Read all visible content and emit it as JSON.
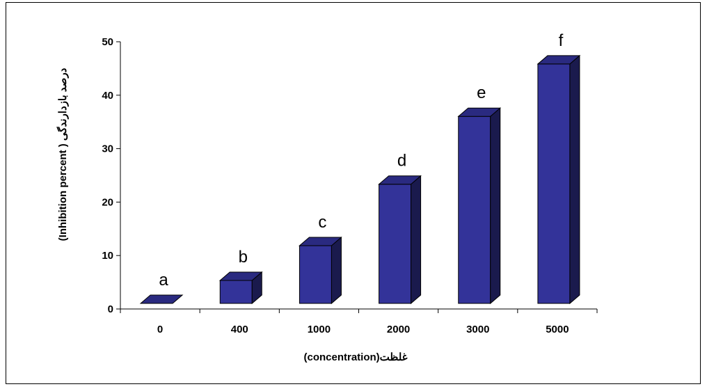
{
  "chart_data": {
    "type": "bar",
    "categories": [
      "0",
      "400",
      "1000",
      "2000",
      "3000",
      "5000"
    ],
    "values": [
      0,
      4.3,
      10.8,
      22.3,
      35.0,
      44.8
    ],
    "data_labels": [
      "a",
      "b",
      "c",
      "d",
      "e",
      "f"
    ],
    "y_ticks": [
      "0",
      "10",
      "20",
      "30",
      "40",
      "50"
    ],
    "ylim": [
      0,
      50
    ],
    "xlabel": "غلظت(concentration)",
    "ylabel": "درصد بازدارندگی  ( Inhibition percent)",
    "bar_color": "#333399",
    "bar_side_color": "#1a1a4d",
    "bar_top_color": "#2a2a80",
    "grid": false,
    "style": "3d-column"
  }
}
